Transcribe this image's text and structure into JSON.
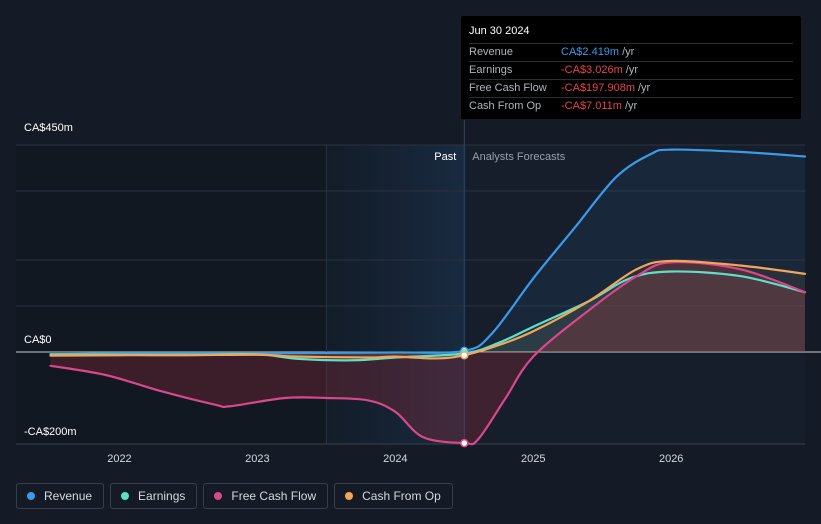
{
  "tooltip": {
    "date": "Jun 30 2024",
    "rows": [
      {
        "label": "Revenue",
        "value": "CA$2.419m",
        "unit": "/yr",
        "color": "#3a9be8"
      },
      {
        "label": "Earnings",
        "value": "-CA$3.026m",
        "unit": "/yr",
        "color": "#e8444a"
      },
      {
        "label": "Free Cash Flow",
        "value": "-CA$197.908m",
        "unit": "/yr",
        "color": "#e8444a"
      },
      {
        "label": "Cash From Op",
        "value": "-CA$7.011m",
        "unit": "/yr",
        "color": "#e8444a"
      }
    ]
  },
  "labels": {
    "past": "Past",
    "forecast": "Analysts Forecasts"
  },
  "chart_data": {
    "type": "line",
    "y_tick_labels": [
      "CA$450m",
      "CA$0",
      "-CA$200m"
    ],
    "y_ticks": [
      450,
      0,
      -200
    ],
    "ylim": [
      -200,
      450
    ],
    "x_tick_labels": [
      "2022",
      "2023",
      "2024",
      "2025",
      "2026"
    ],
    "x_ticks": [
      2022,
      2023,
      2024,
      2025,
      2026
    ],
    "xlim": [
      2021.25,
      2026.97
    ],
    "past_end": 2024.5,
    "highlight_start": 2023.5,
    "grid": true,
    "series": [
      {
        "name": "Revenue",
        "color": "#3a9be8",
        "points": [
          [
            2021.5,
            -5
          ],
          [
            2022,
            -3
          ],
          [
            2022.5,
            -3
          ],
          [
            2023,
            -3
          ],
          [
            2023.5,
            -2
          ],
          [
            2024,
            -1
          ],
          [
            2024.5,
            2.4
          ],
          [
            2024.7,
            40
          ],
          [
            2025,
            160
          ],
          [
            2025.3,
            270
          ],
          [
            2025.6,
            380
          ],
          [
            2025.85,
            430
          ],
          [
            2026,
            440
          ],
          [
            2026.5,
            435
          ],
          [
            2026.97,
            425
          ]
        ]
      },
      {
        "name": "Earnings",
        "color": "#5ee0c8",
        "points": [
          [
            2021.5,
            -5
          ],
          [
            2022,
            -6
          ],
          [
            2022.5,
            -6
          ],
          [
            2023,
            -5
          ],
          [
            2023.3,
            -15
          ],
          [
            2023.7,
            -18
          ],
          [
            2024,
            -12
          ],
          [
            2024.5,
            -3
          ],
          [
            2024.75,
            20
          ],
          [
            2025,
            55
          ],
          [
            2025.4,
            110
          ],
          [
            2025.7,
            160
          ],
          [
            2026,
            175
          ],
          [
            2026.5,
            165
          ],
          [
            2026.97,
            130
          ]
        ]
      },
      {
        "name": "Free Cash Flow",
        "color": "#d9488a",
        "points": [
          [
            2021.5,
            -30
          ],
          [
            2021.9,
            -50
          ],
          [
            2022.3,
            -85
          ],
          [
            2022.7,
            -115
          ],
          [
            2022.8,
            -118
          ],
          [
            2023.2,
            -100
          ],
          [
            2023.5,
            -100
          ],
          [
            2023.8,
            -105
          ],
          [
            2024.0,
            -130
          ],
          [
            2024.2,
            -185
          ],
          [
            2024.5,
            -198
          ],
          [
            2024.6,
            -190
          ],
          [
            2024.8,
            -100
          ],
          [
            2025.0,
            -10
          ],
          [
            2025.4,
            90
          ],
          [
            2025.75,
            165
          ],
          [
            2026,
            195
          ],
          [
            2026.5,
            180
          ],
          [
            2026.97,
            130
          ]
        ]
      },
      {
        "name": "Cash From Op",
        "color": "#f2a65a",
        "points": [
          [
            2021.5,
            -8
          ],
          [
            2022,
            -7
          ],
          [
            2022.5,
            -7
          ],
          [
            2023,
            -6
          ],
          [
            2023.3,
            -10
          ],
          [
            2023.8,
            -12
          ],
          [
            2024,
            -10
          ],
          [
            2024.3,
            -14
          ],
          [
            2024.5,
            -7
          ],
          [
            2024.75,
            15
          ],
          [
            2025,
            45
          ],
          [
            2025.4,
            110
          ],
          [
            2025.75,
            180
          ],
          [
            2026,
            198
          ],
          [
            2026.5,
            188
          ],
          [
            2026.97,
            170
          ]
        ]
      }
    ]
  },
  "legend": [
    {
      "label": "Revenue",
      "color": "#3a9be8"
    },
    {
      "label": "Earnings",
      "color": "#5ee0c8"
    },
    {
      "label": "Free Cash Flow",
      "color": "#d9488a"
    },
    {
      "label": "Cash From Op",
      "color": "#f2a65a"
    }
  ]
}
